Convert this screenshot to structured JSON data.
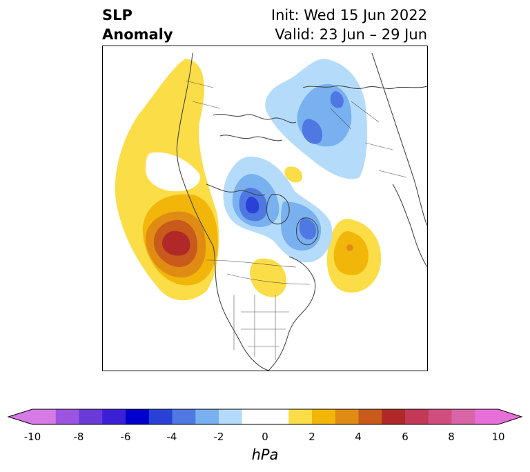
{
  "title": {
    "left_line1": "SLP",
    "left_line2": "Anomaly",
    "right_line1": "Init: Wed 15 Jun 2022",
    "right_line2": "Valid: 23 Jun – 29 Jun"
  },
  "colorbar": {
    "unit": "hPa",
    "ticks": [
      "-10",
      "-8",
      "-6",
      "-4",
      "-2",
      "0",
      "2",
      "4",
      "6",
      "8",
      "10"
    ],
    "tick_values": [
      -10,
      -8,
      -6,
      -4,
      -2,
      0,
      2,
      4,
      6,
      8,
      10
    ],
    "colors": [
      "#d67ae6",
      "#9b55e0",
      "#6a3ad8",
      "#3c20d6",
      "#0000cc",
      "#2a41d8",
      "#4f78e2",
      "#78b0f0",
      "#b4dcfa",
      "#ffffff",
      "#ffffff",
      "#fbdd47",
      "#f2b60a",
      "#e08c14",
      "#c85a1c",
      "#b02828",
      "#c33a58",
      "#cf4e7e",
      "#d964a8",
      "#e670d8"
    ],
    "under_color": "#d67ae6",
    "over_color": "#e670d8"
  },
  "map": {
    "projection": "polar-stereographic-north",
    "features": [
      "coastlines",
      "country-borders",
      "us-state-borders"
    ],
    "anomaly_centers": [
      {
        "region": "Gulf of Alaska / NE Pacific",
        "sign": "positive",
        "peak_hpa": 6
      },
      {
        "region": "Baffin Bay / Canadian Arctic",
        "sign": "negative",
        "peak_hpa": -6
      },
      {
        "region": "Greenland / North Atlantic",
        "sign": "negative",
        "peak_hpa": -4
      },
      {
        "region": "Arctic Ocean / Siberia",
        "sign": "negative",
        "peak_hpa": -4
      },
      {
        "region": "Central North Atlantic",
        "sign": "positive",
        "peak_hpa": 4
      },
      {
        "region": "Great Lakes / Hudson",
        "sign": "positive",
        "peak_hpa": 2
      }
    ]
  }
}
